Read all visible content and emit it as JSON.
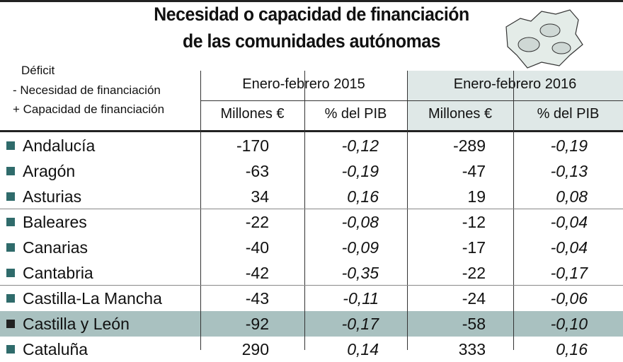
{
  "title": [
    "Necesidad o capacidad de financiación",
    "de las comunidades autónomas"
  ],
  "legend": [
    "Déficit",
    "- Necesidad de financiación",
    "+ Capacidad de financiación"
  ],
  "table": {
    "groups": [
      "Enero-febrero 2015",
      "Enero-febrero 2016"
    ],
    "columns": [
      "Millones €",
      "% del PIB",
      "Millones €",
      "% del PIB"
    ],
    "rows": [
      [
        "Andalucía",
        "-170",
        "-0,12",
        "-289",
        "-0,19"
      ],
      [
        "Aragón",
        "-63",
        "-0,19",
        "-47",
        "-0,13"
      ],
      [
        "Asturias",
        "34",
        "0,16",
        "19",
        "0,08"
      ],
      [
        "Baleares",
        "-22",
        "-0,08",
        "-12",
        "-0,04"
      ],
      [
        "Canarias",
        "-40",
        "-0,09",
        "-17",
        "-0,04"
      ],
      [
        "Cantabria",
        "-42",
        "-0,35",
        "-22",
        "-0,17"
      ],
      [
        "Castilla-La Mancha",
        "-43",
        "-0,11",
        "-24",
        "-0,06"
      ],
      [
        "Castilla y León",
        "-92",
        "-0,17",
        "-58",
        "-0,10"
      ],
      [
        "Cataluña",
        "290",
        "0,14",
        "333",
        "0,16"
      ]
    ]
  }
}
